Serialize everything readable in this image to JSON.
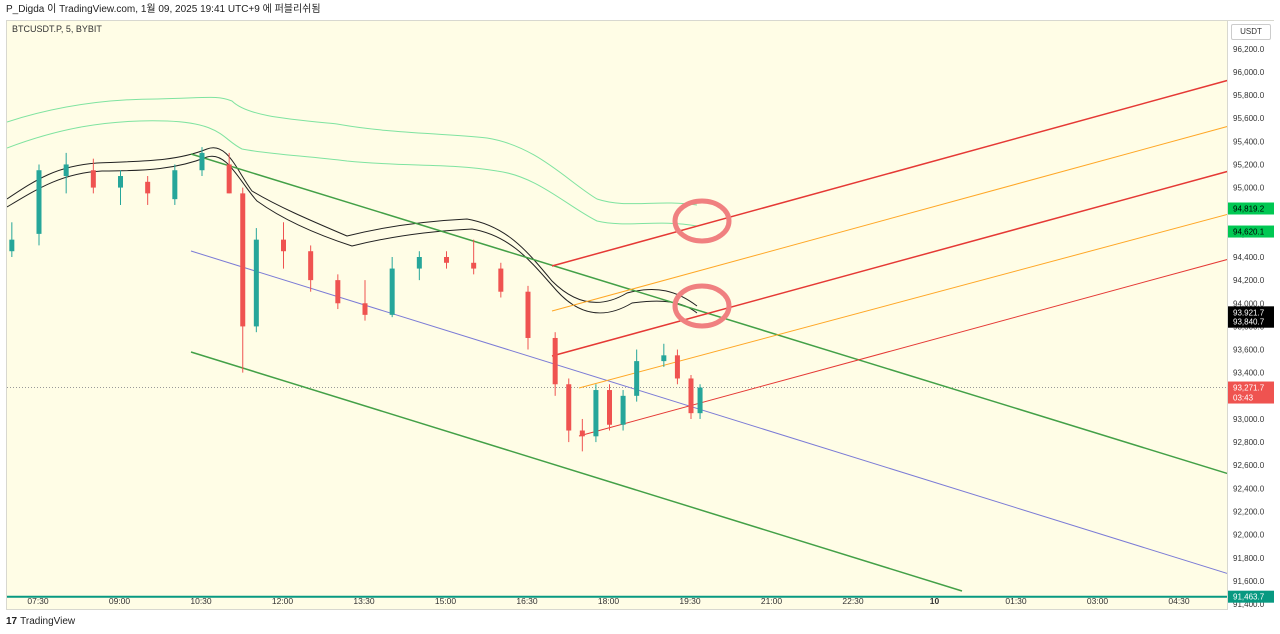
{
  "header": {
    "publish_line": "P_Digda 이 TradingView.com, 1월 09, 2025 19:41 UTC+9 에 퍼블리쉬됨"
  },
  "symbol_label": "BTCUSDT.P, 5, BYBIT",
  "currency_button": "USDT",
  "footer": {
    "logo_glyph": "17",
    "brand": "TradingView"
  },
  "colors": {
    "background": "#fffde6",
    "up_candle": "#26a69a",
    "down_candle": "#ef5350",
    "green_trend": "#43a047",
    "blue_line": "#7b7bd6",
    "red_line": "#e53935",
    "orange_line": "#ffa726",
    "envelope_black": "#222222",
    "envelope_green": "#7fe3a0",
    "horizontal_line": "#089981",
    "circle_marker": "#f08080"
  },
  "price_axis": {
    "ticks": [
      "96,200.0",
      "96,000.0",
      "95,800.0",
      "95,600.0",
      "95,400.0",
      "95,200.0",
      "95,000.0",
      "94,800.0",
      "94,600.0",
      "94,400.0",
      "94,200.0",
      "94,000.0",
      "93,800.0",
      "93,600.0",
      "93,400.0",
      "93,200.0",
      "93,000.0",
      "92,800.0",
      "92,600.0",
      "92,400.0",
      "92,200.0",
      "92,000.0",
      "91,800.0",
      "91,600.0",
      "91,400.0"
    ],
    "badges": [
      {
        "price": 94819.2,
        "text": "94,819.2",
        "bg": "#00c853",
        "fg": "#000000"
      },
      {
        "price": 94620.1,
        "text": "94,620.1",
        "bg": "#00c853",
        "fg": "#000000"
      },
      {
        "price": 93921.7,
        "text": "93,921.7",
        "bg": "#000000",
        "fg": "#ffffff"
      },
      {
        "price": 93840.7,
        "text": "93,840.7",
        "bg": "#000000",
        "fg": "#ffffff"
      },
      {
        "price": 93271.7,
        "text": "93,271.7",
        "sub": "03:43",
        "bg": "#ef5350",
        "fg": "#ffffff"
      },
      {
        "price": 91463.7,
        "text": "91,463.7",
        "bg": "#089981",
        "fg": "#ffffff"
      }
    ]
  },
  "time_axis": {
    "labels": [
      "07:30",
      "09:00",
      "10:30",
      "12:00",
      "13:30",
      "15:00",
      "16:30",
      "18:00",
      "19:30",
      "21:00",
      "22:30",
      "10",
      "01:30",
      "03:00",
      "04:30"
    ]
  },
  "chart_data": {
    "type": "candlestick",
    "symbol": "BTCUSDT.P",
    "interval": "5",
    "exchange": "BYBIT",
    "ylim": [
      91340,
      96440
    ],
    "current_price": 93271.7,
    "countdown": "03:43",
    "series": [
      {
        "x": "07:00",
        "o": 94450,
        "h": 94700,
        "l": 94400,
        "c": 94550
      },
      {
        "x": "07:30",
        "o": 94600,
        "h": 95200,
        "l": 94500,
        "c": 95150
      },
      {
        "x": "08:00",
        "o": 95100,
        "h": 95300,
        "l": 94950,
        "c": 95200
      },
      {
        "x": "08:30",
        "o": 95150,
        "h": 95250,
        "l": 94950,
        "c": 95000
      },
      {
        "x": "09:00",
        "o": 95000,
        "h": 95150,
        "l": 94850,
        "c": 95100
      },
      {
        "x": "09:30",
        "o": 95050,
        "h": 95100,
        "l": 94850,
        "c": 94950
      },
      {
        "x": "10:00",
        "o": 94900,
        "h": 95200,
        "l": 94850,
        "c": 95150
      },
      {
        "x": "10:30",
        "o": 95150,
        "h": 95350,
        "l": 95100,
        "c": 95300
      },
      {
        "x": "11:00",
        "o": 95200,
        "h": 95300,
        "l": 94950,
        "c": 94950
      },
      {
        "x": "11:15",
        "o": 94950,
        "h": 95000,
        "l": 93400,
        "c": 93800
      },
      {
        "x": "11:30",
        "o": 93800,
        "h": 94650,
        "l": 93750,
        "c": 94550
      },
      {
        "x": "12:00",
        "o": 94550,
        "h": 94700,
        "l": 94300,
        "c": 94450
      },
      {
        "x": "12:30",
        "o": 94450,
        "h": 94500,
        "l": 94100,
        "c": 94200
      },
      {
        "x": "13:00",
        "o": 94200,
        "h": 94250,
        "l": 93950,
        "c": 94000
      },
      {
        "x": "13:30",
        "o": 94000,
        "h": 94200,
        "l": 93850,
        "c": 93900
      },
      {
        "x": "14:00",
        "o": 93900,
        "h": 94400,
        "l": 93880,
        "c": 94300
      },
      {
        "x": "14:30",
        "o": 94300,
        "h": 94450,
        "l": 94200,
        "c": 94400
      },
      {
        "x": "15:00",
        "o": 94400,
        "h": 94450,
        "l": 94300,
        "c": 94350
      },
      {
        "x": "15:30",
        "o": 94350,
        "h": 94550,
        "l": 94250,
        "c": 94300
      },
      {
        "x": "16:00",
        "o": 94300,
        "h": 94350,
        "l": 94050,
        "c": 94100
      },
      {
        "x": "16:30",
        "o": 94100,
        "h": 94150,
        "l": 93600,
        "c": 93700
      },
      {
        "x": "17:00",
        "o": 93700,
        "h": 93750,
        "l": 93200,
        "c": 93300
      },
      {
        "x": "17:15",
        "o": 93300,
        "h": 93350,
        "l": 92800,
        "c": 92900
      },
      {
        "x": "17:30",
        "o": 92900,
        "h": 93000,
        "l": 92720,
        "c": 92850
      },
      {
        "x": "17:45",
        "o": 92850,
        "h": 93300,
        "l": 92800,
        "c": 93250
      },
      {
        "x": "18:00",
        "o": 93250,
        "h": 93300,
        "l": 92900,
        "c": 92950
      },
      {
        "x": "18:15",
        "o": 92950,
        "h": 93250,
        "l": 92900,
        "c": 93200
      },
      {
        "x": "18:30",
        "o": 93200,
        "h": 93600,
        "l": 93150,
        "c": 93500
      },
      {
        "x": "19:00",
        "o": 93500,
        "h": 93650,
        "l": 93450,
        "c": 93550
      },
      {
        "x": "19:15",
        "o": 93550,
        "h": 93600,
        "l": 93300,
        "c": 93350
      },
      {
        "x": "19:30",
        "o": 93350,
        "h": 93380,
        "l": 93000,
        "c": 93050
      },
      {
        "x": "19:40",
        "o": 93050,
        "h": 93300,
        "l": 93000,
        "c": 93271.7
      }
    ],
    "horizontal_line": {
      "price": 91463.7,
      "color": "#089981"
    }
  }
}
